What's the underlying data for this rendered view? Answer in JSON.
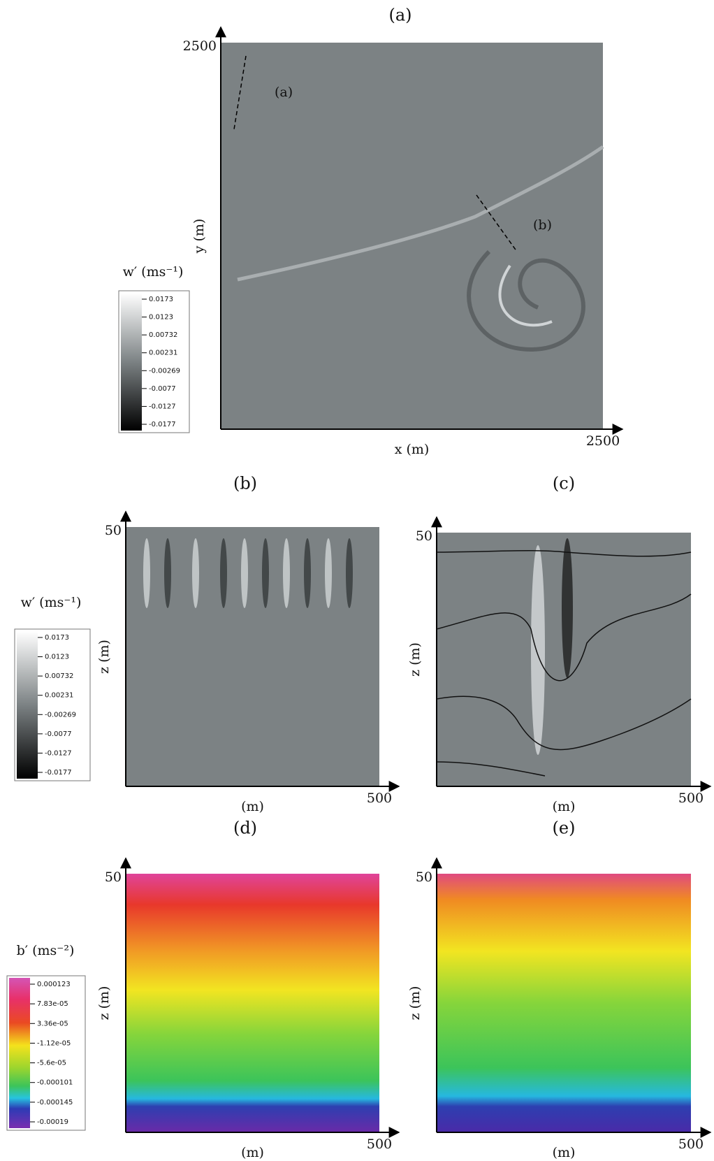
{
  "panels": [
    {
      "title": "(a)",
      "xlabel": "x (m)",
      "ylabel": "y (m)",
      "xtick": "2500",
      "ytick": "2500",
      "annotations": [
        "(a)",
        "(b)"
      ]
    },
    {
      "title": "(b)",
      "xlabel": "(m)",
      "ylabel": "z (m)",
      "xtick": "500",
      "ytick": "50"
    },
    {
      "title": "(c)",
      "xlabel": "(m)",
      "ylabel": "z (m)",
      "xtick": "500",
      "ytick": "50"
    },
    {
      "title": "(d)",
      "xlabel": "(m)",
      "ylabel": "z (m)",
      "xtick": "500",
      "ytick": "50"
    },
    {
      "title": "(e)",
      "xlabel": "(m)",
      "ylabel": "z (m)",
      "xtick": "500",
      "ytick": "50"
    }
  ],
  "colorbars": [
    {
      "label": "w′ (ms⁻¹)",
      "ticks": [
        "0.0173",
        "0.0123",
        "0.00732",
        "0.00231",
        "-0.00269",
        "-0.0077",
        "-0.0127",
        "-0.0177"
      ]
    },
    {
      "label": "w′ (ms⁻¹)",
      "ticks": [
        "0.0173",
        "0.0123",
        "0.00732",
        "0.00231",
        "-0.00269",
        "-0.0077",
        "-0.0127",
        "-0.0177"
      ]
    },
    {
      "label": "b′ (ms⁻²)",
      "ticks": [
        "0.000123",
        "7.83e-05",
        "3.36e-05",
        "-1.12e-05",
        "-5.6e-05",
        "-0.000101",
        "-0.000145",
        "-0.00019"
      ]
    }
  ]
}
